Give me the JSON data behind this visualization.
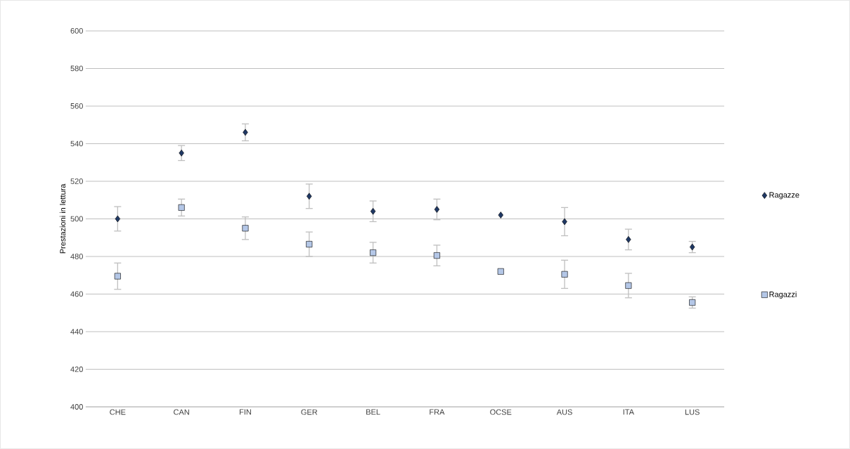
{
  "chart_data": {
    "type": "scatter",
    "ylabel": "Prestazioni in lettura",
    "categories": [
      "CHE",
      "CAN",
      "FIN",
      "GER",
      "BEL",
      "FRA",
      "OCSE",
      "AUS",
      "ITA",
      "LUS"
    ],
    "series": [
      {
        "name": "Ragazze",
        "color": "#1f3864",
        "marker": "diamond",
        "values": [
          500,
          535,
          546,
          512,
          504,
          505,
          502,
          498.5,
          489,
          485
        ],
        "errors": [
          6.5,
          4,
          4.5,
          6.5,
          5.5,
          5.5,
          null,
          7.5,
          5.5,
          3
        ]
      },
      {
        "name": "Ragazzi",
        "color": "#b4c7e7",
        "marker": "square",
        "values": [
          469.5,
          506,
          495,
          486.5,
          482,
          480.5,
          472,
          470.5,
          464.5,
          455.5
        ],
        "errors": [
          7,
          4.5,
          6,
          6.5,
          5.5,
          5.5,
          null,
          7.5,
          6.5,
          3
        ]
      }
    ],
    "ylim": [
      400,
      600
    ],
    "yticks": [
      400,
      420,
      440,
      460,
      480,
      500,
      520,
      540,
      560,
      580,
      600
    ],
    "grid": "y",
    "legend": "right"
  }
}
